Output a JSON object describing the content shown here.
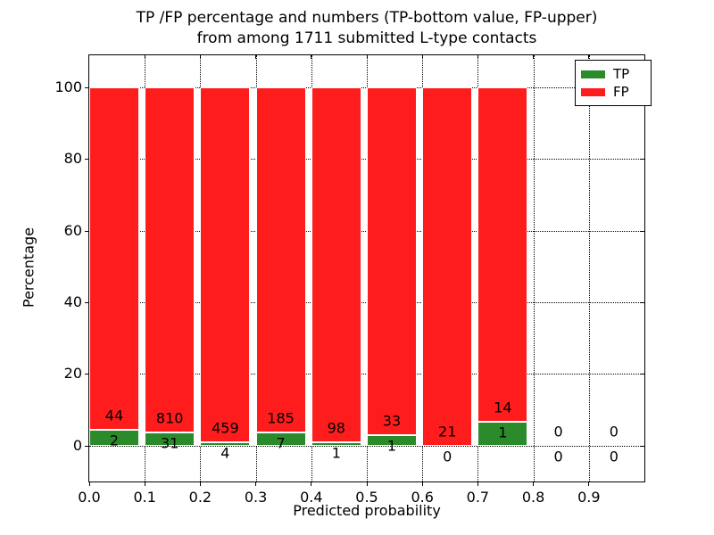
{
  "title": {
    "line1": "TP /FP percentage and numbers (TP-bottom value, FP-upper)",
    "line2": "from among 1711 submitted L-type contacts"
  },
  "colors": {
    "tp": "#2b8b2b",
    "fp": "#ff1c1c",
    "axis": "#000000",
    "grid": "#000000",
    "background": "#ffffff"
  },
  "chart_data": {
    "type": "bar",
    "stacked": true,
    "title": "TP /FP percentage and numbers (TP-bottom value, FP-upper)\nfrom among 1711 submitted L-type contacts",
    "xlabel": "Predicted probability",
    "ylabel": "Percentage",
    "xlim": [
      0.0,
      1.0
    ],
    "ylim": [
      -10,
      109
    ],
    "grid": true,
    "grid_style": "dotted",
    "bar_width": 0.09,
    "total_contacts": 1711,
    "x_ticks": [
      0.0,
      0.1,
      0.2,
      0.3,
      0.4,
      0.5,
      0.6,
      0.7,
      0.8,
      0.9
    ],
    "x_tick_labels": [
      "0.0",
      "0.1",
      "0.2",
      "0.3",
      "0.4",
      "0.5",
      "0.6",
      "0.7",
      "0.8",
      "0.9"
    ],
    "y_ticks": [
      0,
      20,
      40,
      60,
      80,
      100
    ],
    "legend": {
      "position": "upper right",
      "entries": [
        {
          "label": "TP",
          "color": "#2b8b2b"
        },
        {
          "label": "FP",
          "color": "#ff1c1c"
        }
      ]
    },
    "bins": [
      {
        "x": 0.0,
        "tp": 2,
        "fp": 44
      },
      {
        "x": 0.1,
        "tp": 31,
        "fp": 810
      },
      {
        "x": 0.2,
        "tp": 4,
        "fp": 459
      },
      {
        "x": 0.3,
        "tp": 7,
        "fp": 185
      },
      {
        "x": 0.4,
        "tp": 1,
        "fp": 98
      },
      {
        "x": 0.5,
        "tp": 1,
        "fp": 33
      },
      {
        "x": 0.6,
        "tp": 0,
        "fp": 21
      },
      {
        "x": 0.7,
        "tp": 1,
        "fp": 14
      },
      {
        "x": 0.8,
        "tp": 0,
        "fp": 0
      },
      {
        "x": 0.9,
        "tp": 0,
        "fp": 0
      }
    ]
  }
}
